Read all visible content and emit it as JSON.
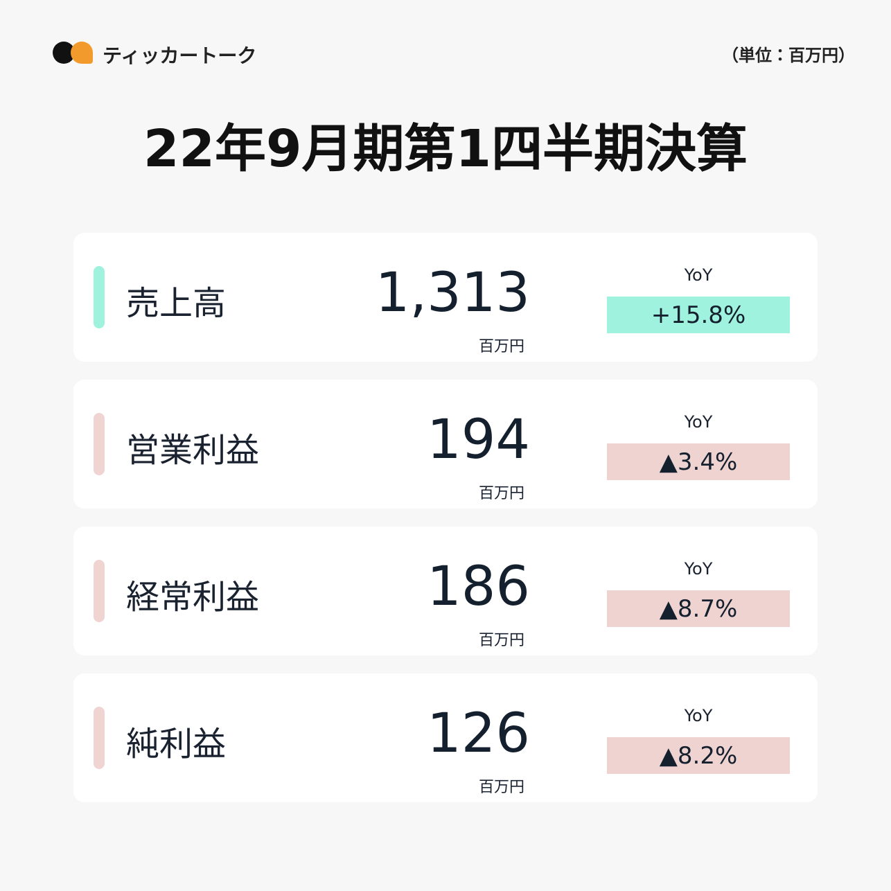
{
  "header": {
    "brand": "ティッカートーク",
    "unit_note": "（単位：百万円）"
  },
  "title": "22年9月期第1四半期決算",
  "rows": [
    {
      "label": "売上高",
      "value": "1,313",
      "unit": "百万円",
      "yoy_label": "YoY",
      "yoy": "+15.8%"
    },
    {
      "label": "営業利益",
      "value": "194",
      "unit": "百万円",
      "yoy_label": "YoY",
      "yoy": "▲3.4%"
    },
    {
      "label": "経常利益",
      "value": "186",
      "unit": "百万円",
      "yoy_label": "YoY",
      "yoy": "▲8.7%"
    },
    {
      "label": "純利益",
      "value": "126",
      "unit": "百万円",
      "yoy_label": "YoY",
      "yoy": "▲8.2%"
    }
  ]
}
